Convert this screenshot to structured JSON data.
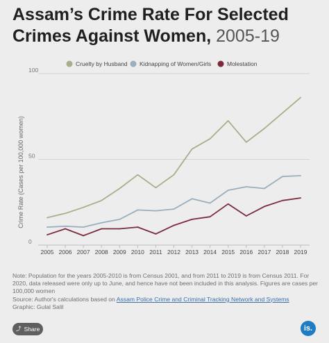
{
  "title_bold": "Assam’s Crime Rate For Selected Crimes Against Women,",
  "title_light": "2005-19",
  "chart_data": {
    "type": "line",
    "ylabel": "Crime Rate (Cases per 100,000 women)",
    "xlabel": "",
    "ylim": [
      0,
      100
    ],
    "yticks": [
      "0",
      "50",
      "100"
    ],
    "categories": [
      "2005",
      "2006",
      "2007",
      "2008",
      "2009",
      "2010",
      "2011",
      "2012",
      "2013",
      "2014",
      "2015",
      "2016",
      "2017",
      "2018",
      "2019"
    ],
    "legend_position": "top-center",
    "grid": "horizontal",
    "series": [
      {
        "name": "Cruelty by Husband",
        "color": "#a9ad8a",
        "values": [
          16,
          18.5,
          22,
          26,
          33,
          41,
          33.5,
          41,
          56,
          62,
          72.5,
          60,
          68,
          77,
          86
        ]
      },
      {
        "name": "Kidnapping of Women/Girls",
        "color": "#9aaebb",
        "values": [
          10.5,
          11,
          10.5,
          13,
          15,
          20.5,
          20,
          21,
          27,
          24.5,
          32,
          34,
          33,
          40,
          40.5
        ]
      },
      {
        "name": "Molestation",
        "color": "#7a2a3c",
        "values": [
          6,
          9.5,
          5.5,
          9.5,
          9.5,
          10.5,
          6.5,
          11.5,
          15,
          16.5,
          24,
          17,
          22.5,
          26,
          27.5
        ]
      }
    ]
  },
  "note": {
    "line1": "Note: Population for the years 2005-2010 is from Census 2001, and from 2011 to 2019 is from Census 2011. For 2020, data released were only up to June, and hence have not been included in this analysis. Figures are cases per 100,000 women",
    "source_prefix": "Source: Author's calculations based on",
    "source_link": "Assam Police Crime and Criminal Tracking Network and Systems",
    "graphic": "Graphic: Gulal Salil"
  },
  "share_label": "Share",
  "logo_text": "is."
}
